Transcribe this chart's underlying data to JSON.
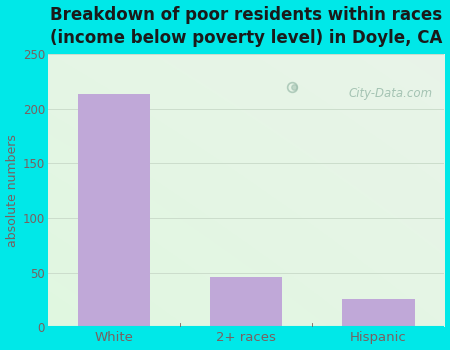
{
  "title": "Breakdown of poor residents within races\n(income below poverty level) in Doyle, CA",
  "categories": [
    "White",
    "2+ races",
    "Hispanic"
  ],
  "values": [
    214,
    46,
    26
  ],
  "bar_color": "#c0a8d8",
  "ylabel": "absolute numbers",
  "ylim": [
    0,
    250
  ],
  "yticks": [
    0,
    50,
    100,
    150,
    200,
    250
  ],
  "title_fontsize": 12,
  "title_color": "#1a1a1a",
  "tick_color": "#7a6060",
  "xlabel_color": "#7a6060",
  "background_outer": "#00e8e8",
  "bg_color_topleft": "#d8f0d8",
  "bg_color_bottomright": "#f5fff5",
  "grid_color": "#ddeecc",
  "watermark": "City-Data.com",
  "watermark_color": "#99bbaa"
}
